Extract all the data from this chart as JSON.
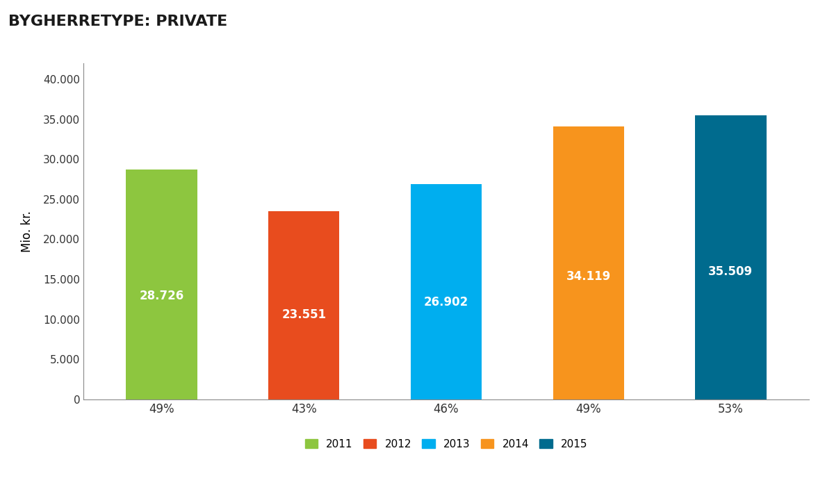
{
  "title": "BYGHERRETYPE: PRIVATE",
  "categories": [
    "49%",
    "43%",
    "46%",
    "49%",
    "53%"
  ],
  "years": [
    "2011",
    "2012",
    "2013",
    "2014",
    "2015"
  ],
  "values": [
    28726,
    23551,
    26902,
    34119,
    35509
  ],
  "bar_labels": [
    "28.726",
    "23.551",
    "26.902",
    "34.119",
    "35.509"
  ],
  "bar_colors": [
    "#8dc63f",
    "#e84c1e",
    "#00aeef",
    "#f7941d",
    "#006b8e"
  ],
  "ylabel": "Mio. kr.",
  "ylim": [
    0,
    42000
  ],
  "yticks": [
    0,
    5000,
    10000,
    15000,
    20000,
    25000,
    30000,
    35000,
    40000
  ],
  "ytick_labels": [
    "0",
    "5.000",
    "10.000",
    "15.000",
    "20.000",
    "25.000",
    "30.000",
    "35.000",
    "40.000"
  ],
  "label_fontsize": 12,
  "title_fontsize": 16,
  "axis_fontsize": 11,
  "legend_fontsize": 11,
  "background_color": "#ffffff",
  "bar_label_color": "#ffffff",
  "bar_label_fontsize": 12,
  "bar_width": 0.5
}
